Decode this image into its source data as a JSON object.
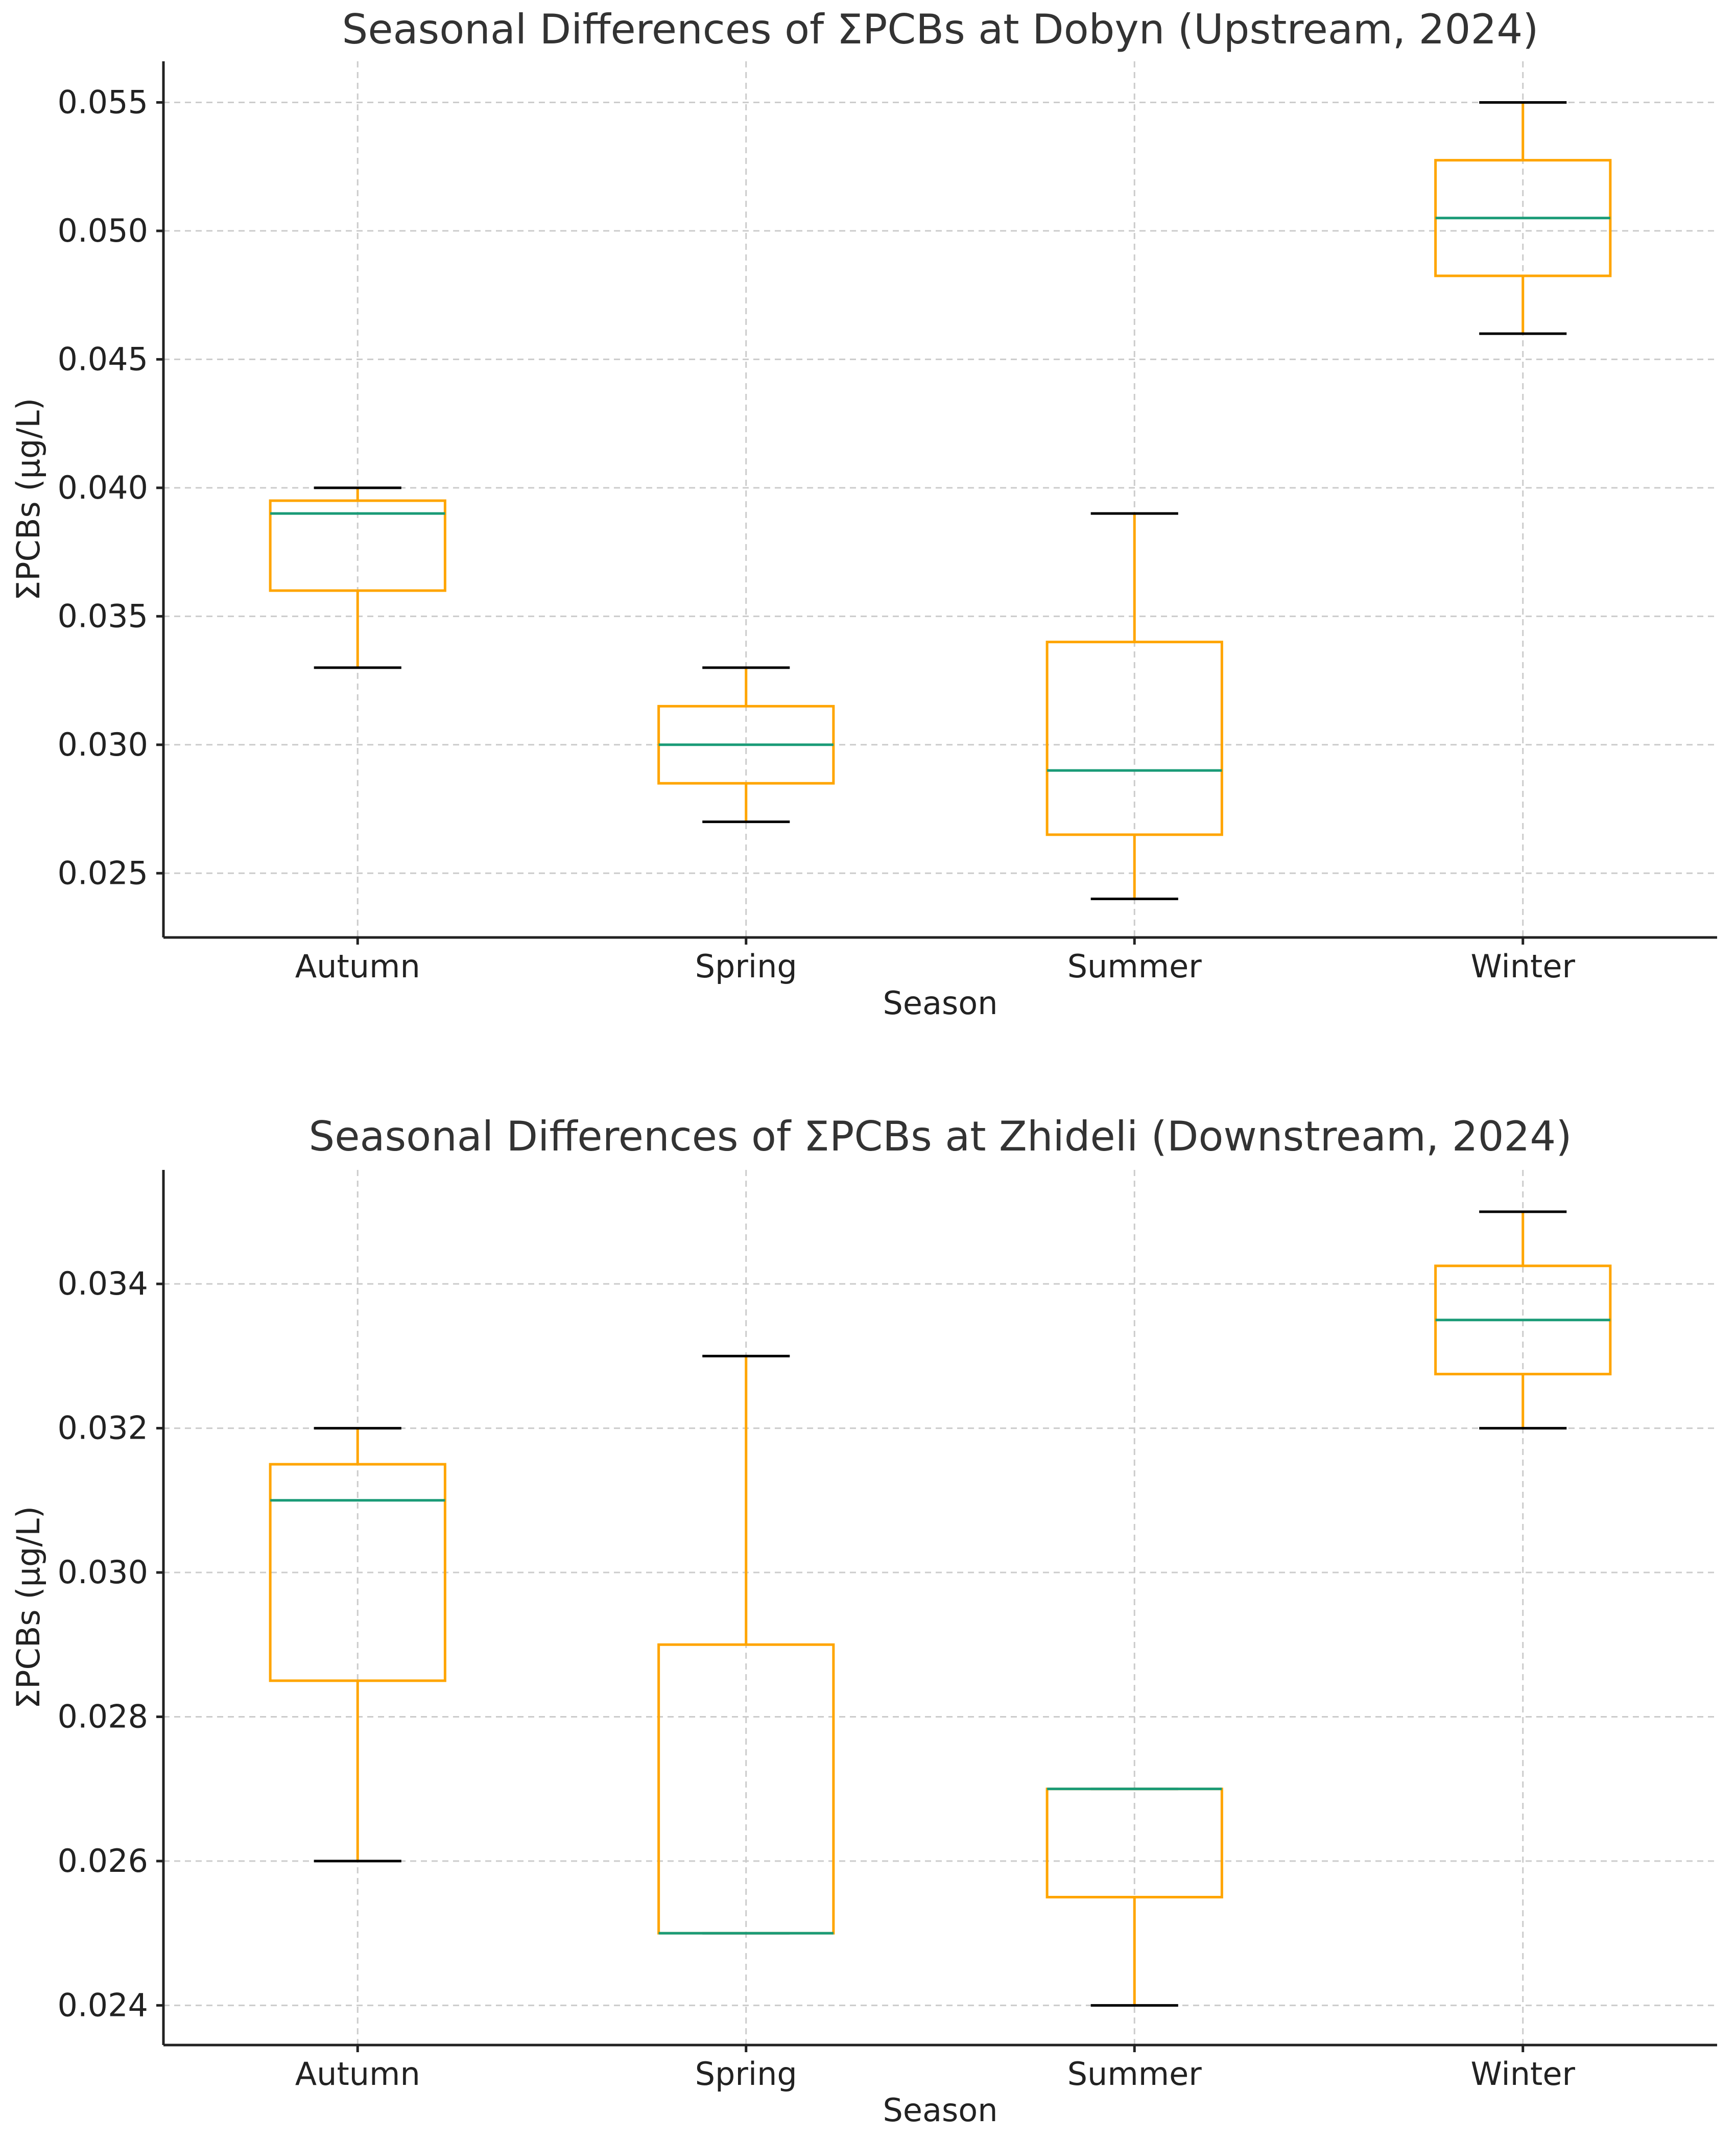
{
  "colors": {
    "box": "#ffa500",
    "median": "#1a9b77",
    "cap": "#000000",
    "whisker": "#ffa500"
  },
  "chart_data": [
    {
      "type": "box",
      "title": "Seasonal Differences of ΣPCBs at Dobyn (Upstream, 2024)",
      "xlabel": "Season",
      "ylabel": "ΣPCBs (μg/L)",
      "categories": [
        "Autumn",
        "Spring",
        "Summer",
        "Winter"
      ],
      "ylim": [
        0.0225,
        0.0566
      ],
      "yticks": [
        0.025,
        0.03,
        0.035,
        0.04,
        0.045,
        0.05,
        0.055
      ],
      "ytick_labels": [
        "0.025",
        "0.030",
        "0.035",
        "0.040",
        "0.045",
        "0.050",
        "0.055"
      ],
      "grid": true,
      "boxes": [
        {
          "category": "Autumn",
          "whislo": 0.033,
          "q1": 0.036,
          "median": 0.039,
          "q3": 0.0395,
          "whishi": 0.04
        },
        {
          "category": "Spring",
          "whislo": 0.027,
          "q1": 0.0285,
          "median": 0.03,
          "q3": 0.0315,
          "whishi": 0.033
        },
        {
          "category": "Summer",
          "whislo": 0.024,
          "q1": 0.0265,
          "median": 0.029,
          "q3": 0.034,
          "whishi": 0.039
        },
        {
          "category": "Winter",
          "whislo": 0.046,
          "q1": 0.04825,
          "median": 0.0505,
          "q3": 0.05275,
          "whishi": 0.055
        }
      ]
    },
    {
      "type": "box",
      "title": "Seasonal Differences of ΣPCBs at Zhideli (Downstream, 2024)",
      "xlabel": "Season",
      "ylabel": "ΣPCBs (μg/L)",
      "categories": [
        "Autumn",
        "Spring",
        "Summer",
        "Winter"
      ],
      "ylim": [
        0.02345,
        0.03558
      ],
      "yticks": [
        0.024,
        0.026,
        0.028,
        0.03,
        0.032,
        0.034
      ],
      "ytick_labels": [
        "0.024",
        "0.026",
        "0.028",
        "0.030",
        "0.032",
        "0.034"
      ],
      "grid": true,
      "boxes": [
        {
          "category": "Autumn",
          "whislo": 0.026,
          "q1": 0.0285,
          "median": 0.031,
          "q3": 0.0315,
          "whishi": 0.032
        },
        {
          "category": "Spring",
          "whislo": 0.025,
          "q1": 0.025,
          "median": 0.025,
          "q3": 0.029,
          "whishi": 0.033
        },
        {
          "category": "Summer",
          "whislo": 0.024,
          "q1": 0.0255,
          "median": 0.027,
          "q3": 0.027,
          "whishi": 0.027
        },
        {
          "category": "Winter",
          "whislo": 0.032,
          "q1": 0.03275,
          "median": 0.0335,
          "q3": 0.03425,
          "whishi": 0.035
        }
      ]
    }
  ]
}
